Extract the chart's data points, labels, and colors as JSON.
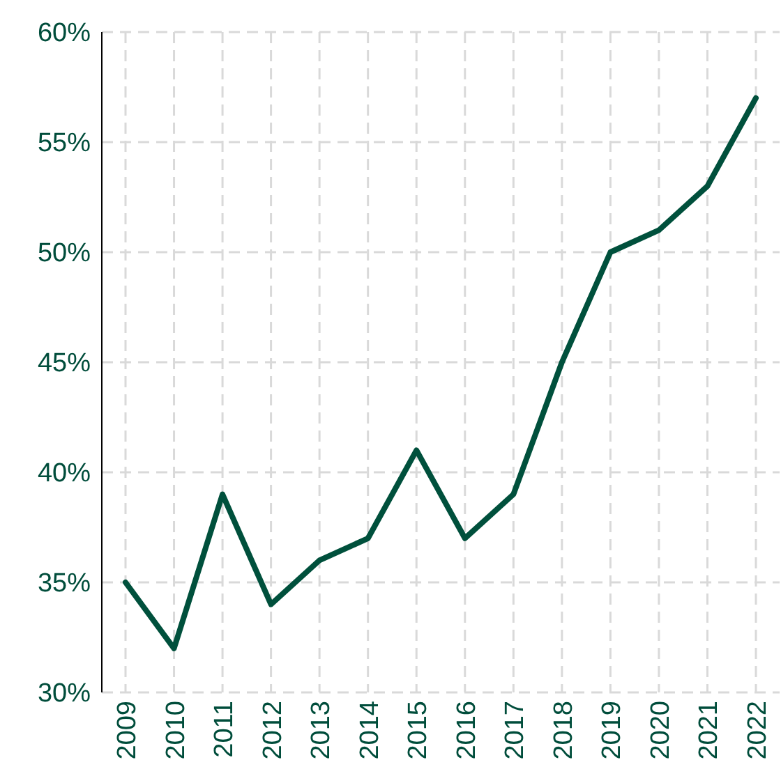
{
  "chart_data": {
    "type": "line",
    "categories": [
      "2009",
      "2010",
      "2011",
      "2012",
      "2013",
      "2014",
      "2015",
      "2016",
      "2017",
      "2018",
      "2019",
      "2020",
      "2021",
      "2022"
    ],
    "series": [
      {
        "color": "#00503c",
        "values": [
          35,
          32,
          39,
          34,
          36,
          37,
          41,
          37,
          39,
          45,
          50,
          51,
          53,
          57
        ]
      }
    ],
    "ylim": [
      30,
      60
    ],
    "yticks": [
      {
        "value": 30,
        "label": "30%"
      },
      {
        "value": 35,
        "label": "35%"
      },
      {
        "value": 40,
        "label": "40%"
      },
      {
        "value": 45,
        "label": "45%"
      },
      {
        "value": 50,
        "label": "50%"
      },
      {
        "value": 55,
        "label": "55%"
      },
      {
        "value": 60,
        "label": "60%"
      }
    ],
    "grid": true,
    "line_style": "solid",
    "marker": "none"
  }
}
